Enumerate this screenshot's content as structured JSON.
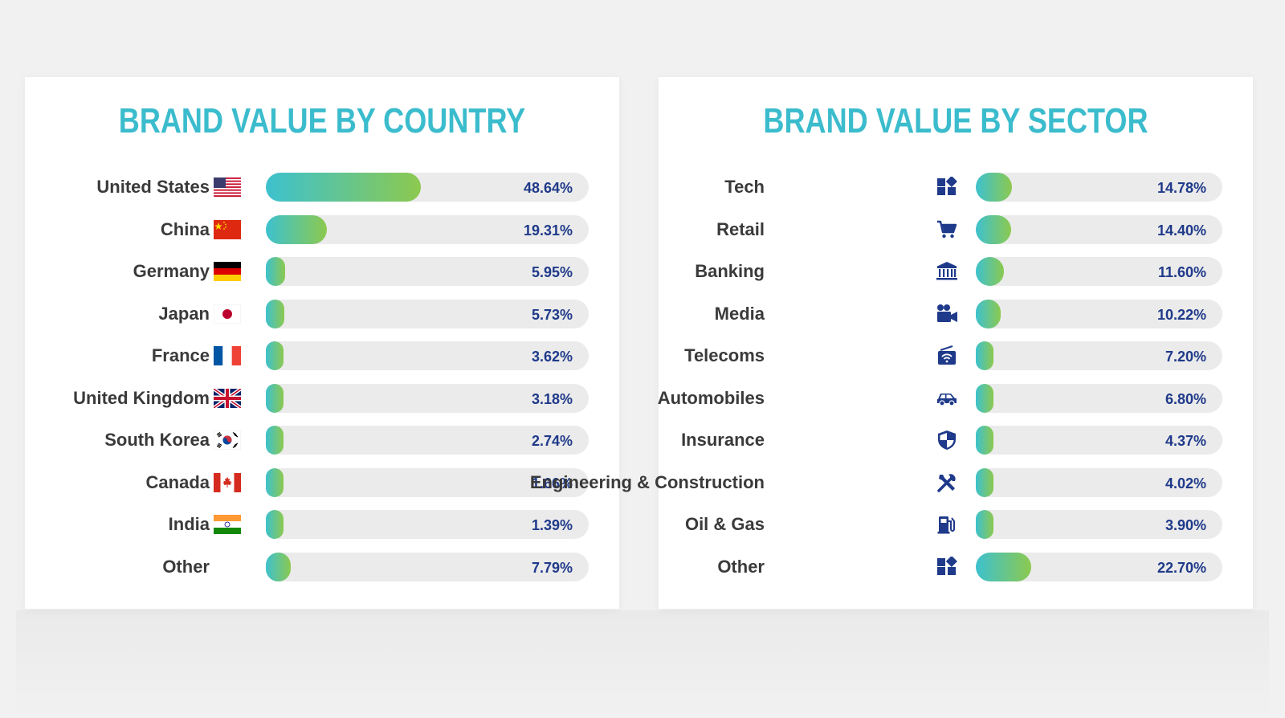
{
  "colors": {
    "title": "#3bbccd",
    "label": "#3a3a3a",
    "percent": "#1f3a8a",
    "track": "#ebebeb",
    "bar_start": "#3dc1cf",
    "bar_end": "#8cc94f",
    "icon": "#1f3a8a"
  },
  "chart_data": [
    {
      "type": "bar",
      "title": "BRAND VALUE BY COUNTRY",
      "orientation": "horizontal",
      "xlim": [
        0,
        100
      ],
      "items": [
        {
          "label": "United States",
          "value": 48.64,
          "display": "48.64%",
          "icon": "us-flag-icon"
        },
        {
          "label": "China",
          "value": 19.31,
          "display": "19.31%",
          "icon": "china-flag-icon"
        },
        {
          "label": "Germany",
          "value": 5.95,
          "display": "5.95%",
          "icon": "germany-flag-icon"
        },
        {
          "label": "Japan",
          "value": 5.73,
          "display": "5.73%",
          "icon": "japan-flag-icon"
        },
        {
          "label": "France",
          "value": 3.62,
          "display": "3.62%",
          "icon": "france-flag-icon"
        },
        {
          "label": "United Kingdom",
          "value": 3.18,
          "display": "3.18%",
          "icon": "uk-flag-icon"
        },
        {
          "label": "South Korea",
          "value": 2.74,
          "display": "2.74%",
          "icon": "south-korea-flag-icon"
        },
        {
          "label": "Canada",
          "value": 1.66,
          "display": "1.66%",
          "icon": "canada-flag-icon"
        },
        {
          "label": "India",
          "value": 1.39,
          "display": "1.39%",
          "icon": "india-flag-icon"
        },
        {
          "label": "Other",
          "value": 7.79,
          "display": "7.79%",
          "icon": ""
        }
      ]
    },
    {
      "type": "bar",
      "title": "BRAND VALUE BY SECTOR",
      "orientation": "horizontal",
      "xlim": [
        0,
        100
      ],
      "items": [
        {
          "label": "Tech",
          "value": 14.78,
          "display": "14.78%",
          "icon": "apps-grid-icon"
        },
        {
          "label": "Retail",
          "value": 14.4,
          "display": "14.40%",
          "icon": "shopping-cart-icon"
        },
        {
          "label": "Banking",
          "value": 11.6,
          "display": "11.60%",
          "icon": "bank-icon"
        },
        {
          "label": "Media",
          "value": 10.22,
          "display": "10.22%",
          "icon": "video-camera-icon"
        },
        {
          "label": "Telecoms",
          "value": 7.2,
          "display": "7.20%",
          "icon": "wifi-radio-icon"
        },
        {
          "label": "Automobiles",
          "value": 6.8,
          "display": "6.80%",
          "icon": "car-icon"
        },
        {
          "label": "Insurance",
          "value": 4.37,
          "display": "4.37%",
          "icon": "shield-icon"
        },
        {
          "label": "Engineering & Construction",
          "value": 4.02,
          "display": "4.02%",
          "icon": "tools-icon"
        },
        {
          "label": "Oil & Gas",
          "value": 3.9,
          "display": "3.90%",
          "icon": "fuel-pump-icon"
        },
        {
          "label": "Other",
          "value": 22.7,
          "display": "22.70%",
          "icon": "apps-grid-icon"
        }
      ]
    }
  ]
}
